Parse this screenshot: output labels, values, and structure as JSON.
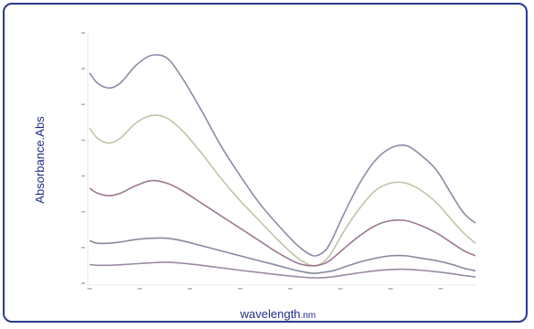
{
  "chart_data": {
    "type": "line",
    "title": "",
    "xlabel": "wavelength",
    "xlabel_unit": ".nm",
    "ylabel": "Absorbance.Abs",
    "x_tick_count": 8,
    "y_tick_count": 8,
    "grid": false,
    "legend": "none",
    "x": [
      0,
      0.02,
      0.05,
      0.08,
      0.12,
      0.16,
      0.2,
      0.24,
      0.29,
      0.34,
      0.39,
      0.44,
      0.49,
      0.54,
      0.58,
      0.61,
      0.63,
      0.66,
      0.7,
      0.74,
      0.78,
      0.82,
      0.86,
      0.9,
      0.94,
      0.97,
      1.0
    ],
    "ylim": [
      0,
      1
    ],
    "series": [
      {
        "color": "#8c8ca8",
        "values": [
          0.84,
          0.8,
          0.78,
          0.8,
          0.87,
          0.91,
          0.9,
          0.82,
          0.69,
          0.55,
          0.43,
          0.32,
          0.23,
          0.15,
          0.11,
          0.13,
          0.18,
          0.28,
          0.4,
          0.49,
          0.54,
          0.55,
          0.51,
          0.45,
          0.35,
          0.28,
          0.24
        ]
      },
      {
        "color": "#c6c2a8",
        "values": [
          0.62,
          0.58,
          0.56,
          0.58,
          0.64,
          0.67,
          0.66,
          0.61,
          0.52,
          0.42,
          0.33,
          0.25,
          0.17,
          0.1,
          0.07,
          0.09,
          0.13,
          0.21,
          0.3,
          0.37,
          0.4,
          0.4,
          0.37,
          0.32,
          0.25,
          0.2,
          0.16
        ]
      },
      {
        "color": "#9c7a92",
        "values": [
          0.38,
          0.36,
          0.35,
          0.36,
          0.39,
          0.41,
          0.4,
          0.37,
          0.32,
          0.27,
          0.22,
          0.17,
          0.12,
          0.08,
          0.07,
          0.08,
          0.1,
          0.14,
          0.19,
          0.23,
          0.25,
          0.25,
          0.23,
          0.2,
          0.16,
          0.13,
          0.11
        ]
      },
      {
        "color": "#8a8aa0",
        "values": [
          0.17,
          0.16,
          0.16,
          0.165,
          0.175,
          0.18,
          0.18,
          0.17,
          0.15,
          0.13,
          0.11,
          0.09,
          0.07,
          0.05,
          0.04,
          0.045,
          0.05,
          0.065,
          0.085,
          0.1,
          0.11,
          0.11,
          0.1,
          0.09,
          0.075,
          0.06,
          0.05
        ]
      },
      {
        "color": "#9a8aa4",
        "values": [
          0.075,
          0.072,
          0.072,
          0.074,
          0.078,
          0.082,
          0.084,
          0.08,
          0.072,
          0.062,
          0.052,
          0.043,
          0.034,
          0.026,
          0.022,
          0.023,
          0.026,
          0.033,
          0.042,
          0.05,
          0.055,
          0.056,
          0.052,
          0.046,
          0.038,
          0.031,
          0.025
        ]
      }
    ]
  }
}
